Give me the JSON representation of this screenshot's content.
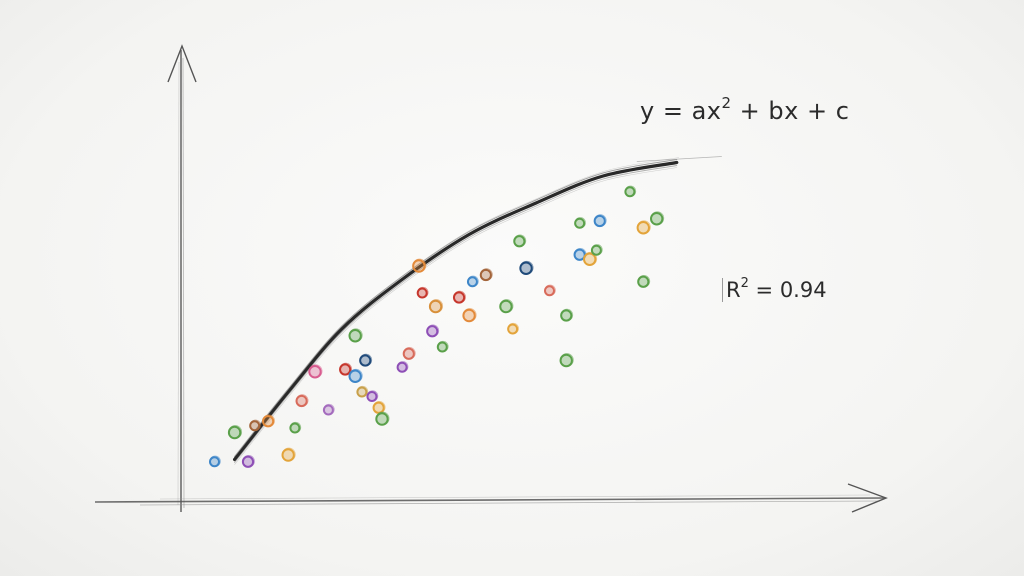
{
  "chart_data": {
    "type": "scatter",
    "title": "",
    "xlabel": "",
    "ylabel": "",
    "xlim": [
      0,
      10
    ],
    "ylim": [
      0,
      10
    ],
    "grid": false,
    "fit": {
      "type": "quadratic",
      "equation_prefix": "y = ax",
      "equation_exp": "2",
      "equation_suffix": " + bx + c",
      "r2_prefix": "R",
      "r2_exp": "2",
      "r2_suffix": " = 0.94",
      "curve_points": [
        [
          0.8,
          0.9
        ],
        [
          1.6,
          2.4
        ],
        [
          2.4,
          3.8
        ],
        [
          3.3,
          4.9
        ],
        [
          4.3,
          5.9
        ],
        [
          5.3,
          6.6
        ],
        [
          6.3,
          7.2
        ],
        [
          7.4,
          7.5
        ]
      ]
    },
    "series": [
      {
        "points": [
          {
            "x": 0.5,
            "y": 0.85,
            "color": "#3e86c8"
          },
          {
            "x": 1.0,
            "y": 0.85,
            "color": "#8e4fb6"
          },
          {
            "x": 0.8,
            "y": 1.5,
            "color": "#5aa04a"
          },
          {
            "x": 1.1,
            "y": 1.65,
            "color": "#a3643a"
          },
          {
            "x": 1.3,
            "y": 1.75,
            "color": "#e38a3a"
          },
          {
            "x": 1.6,
            "y": 1.0,
            "color": "#e3a43a"
          },
          {
            "x": 1.7,
            "y": 1.6,
            "color": "#5aa04a"
          },
          {
            "x": 1.8,
            "y": 2.2,
            "color": "#d86b5b"
          },
          {
            "x": 2.0,
            "y": 2.85,
            "color": "#d85c8f"
          },
          {
            "x": 2.2,
            "y": 2.0,
            "color": "#a46bbd"
          },
          {
            "x": 2.45,
            "y": 2.9,
            "color": "#c6372d"
          },
          {
            "x": 2.6,
            "y": 2.75,
            "color": "#3e86c8"
          },
          {
            "x": 2.7,
            "y": 2.4,
            "color": "#c8a04a"
          },
          {
            "x": 2.75,
            "y": 3.1,
            "color": "#1f4a7a"
          },
          {
            "x": 2.6,
            "y": 3.65,
            "color": "#5aa04a"
          },
          {
            "x": 2.85,
            "y": 2.3,
            "color": "#8e4fb6"
          },
          {
            "x": 2.95,
            "y": 2.05,
            "color": "#e3a43a"
          },
          {
            "x": 3.0,
            "y": 1.8,
            "color": "#5aa04a"
          },
          {
            "x": 3.3,
            "y": 2.95,
            "color": "#8e4fb6"
          },
          {
            "x": 3.4,
            "y": 3.25,
            "color": "#d86b5b"
          },
          {
            "x": 3.55,
            "y": 5.2,
            "color": "#e38a3a"
          },
          {
            "x": 3.6,
            "y": 4.6,
            "color": "#c6372d"
          },
          {
            "x": 3.75,
            "y": 3.75,
            "color": "#8e4fb6"
          },
          {
            "x": 3.8,
            "y": 4.3,
            "color": "#d8903a"
          },
          {
            "x": 3.9,
            "y": 3.4,
            "color": "#5aa04a"
          },
          {
            "x": 4.15,
            "y": 4.5,
            "color": "#c6372d"
          },
          {
            "x": 4.3,
            "y": 4.1,
            "color": "#e38a3a"
          },
          {
            "x": 4.35,
            "y": 4.85,
            "color": "#3e86c8"
          },
          {
            "x": 4.55,
            "y": 5.0,
            "color": "#a3643a"
          },
          {
            "x": 4.85,
            "y": 4.3,
            "color": "#5aa04a"
          },
          {
            "x": 4.95,
            "y": 3.8,
            "color": "#e3a43a"
          },
          {
            "x": 5.05,
            "y": 5.75,
            "color": "#5aa04a"
          },
          {
            "x": 5.15,
            "y": 5.15,
            "color": "#1f4a7a"
          },
          {
            "x": 5.5,
            "y": 4.65,
            "color": "#d86b5b"
          },
          {
            "x": 5.75,
            "y": 4.1,
            "color": "#5aa04a"
          },
          {
            "x": 5.75,
            "y": 3.1,
            "color": "#5aa04a"
          },
          {
            "x": 5.95,
            "y": 6.15,
            "color": "#5aa04a"
          },
          {
            "x": 5.95,
            "y": 5.45,
            "color": "#3e86c8"
          },
          {
            "x": 6.1,
            "y": 5.35,
            "color": "#e3a43a"
          },
          {
            "x": 6.2,
            "y": 5.55,
            "color": "#5aa04a"
          },
          {
            "x": 6.25,
            "y": 6.2,
            "color": "#3e86c8"
          },
          {
            "x": 6.9,
            "y": 6.05,
            "color": "#e3a43a"
          },
          {
            "x": 6.7,
            "y": 6.85,
            "color": "#5aa04a"
          },
          {
            "x": 6.9,
            "y": 4.85,
            "color": "#5aa04a"
          },
          {
            "x": 7.1,
            "y": 6.25,
            "color": "#5aa04a"
          }
        ]
      }
    ]
  }
}
